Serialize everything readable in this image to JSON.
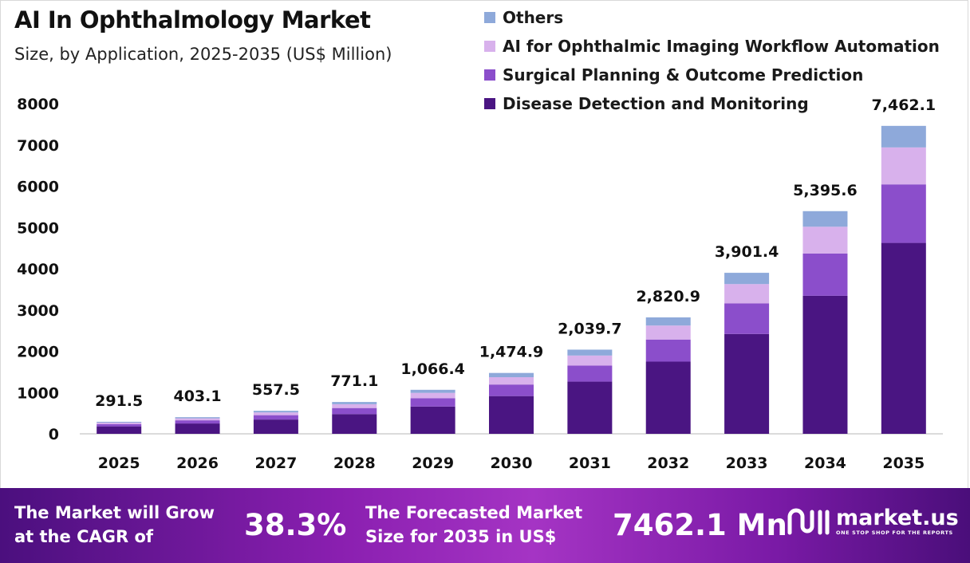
{
  "title": "AI In Ophthalmology Market",
  "subtitle": "Size, by Application, 2025-2035 (US$ Million)",
  "colors": {
    "disease_detection": "#4a1582",
    "surgical_planning": "#8b4ecb",
    "imaging_workflow": "#d8b1ec",
    "others": "#8ea9da",
    "axis_line": "#cfcfcf"
  },
  "chart_data": {
    "type": "bar",
    "stacked": true,
    "title": "AI In Ophthalmology Market",
    "subtitle": "Size, by Application, 2025-2035 (US$ Million)",
    "xlabel": "",
    "ylabel": "",
    "ylim": [
      0,
      8000
    ],
    "yticks": [
      0,
      1000,
      2000,
      3000,
      4000,
      5000,
      6000,
      7000,
      8000
    ],
    "grid": false,
    "legend_position": "top-right",
    "categories": [
      "2025",
      "2026",
      "2027",
      "2028",
      "2029",
      "2030",
      "2031",
      "2032",
      "2033",
      "2034",
      "2035"
    ],
    "totals": [
      291.5,
      403.1,
      557.5,
      771.1,
      1066.4,
      1474.9,
      2039.7,
      2820.9,
      3901.4,
      5395.6,
      7462.1
    ],
    "total_labels": [
      "291.5",
      "403.1",
      "557.5",
      "771.1",
      "1,066.4",
      "1,474.9",
      "2,039.7",
      "2,820.9",
      "3,901.4",
      "5,395.6",
      "7,462.1"
    ],
    "series": [
      {
        "name": "Disease Detection and Monitoring",
        "color_key": "disease_detection",
        "values": [
          180.7,
          249.9,
          345.7,
          478.1,
          661.2,
          914.4,
          1264.6,
          1748.9,
          2418.9,
          3345.3,
          4626.5
        ]
      },
      {
        "name": "Surgical Planning & Outcome Prediction",
        "color_key": "surgical_planning",
        "values": [
          55.4,
          76.6,
          105.9,
          146.5,
          202.6,
          280.2,
          387.5,
          536.0,
          741.3,
          1025.2,
          1417.8
        ]
      },
      {
        "name": "AI for Ophthalmic Imaging Workflow Automation",
        "color_key": "imaging_workflow",
        "values": [
          35.0,
          48.4,
          66.9,
          92.5,
          128.0,
          177.0,
          244.8,
          338.5,
          468.2,
          647.5,
          895.5
        ]
      },
      {
        "name": "Others",
        "color_key": "others",
        "values": [
          20.4,
          28.2,
          39.0,
          54.0,
          74.6,
          103.3,
          142.8,
          197.5,
          273.1,
          377.7,
          522.3
        ]
      }
    ]
  },
  "legend": [
    {
      "label": "Others",
      "color_key": "others"
    },
    {
      "label": "AI for Ophthalmic Imaging Workflow Automation",
      "color_key": "imaging_workflow"
    },
    {
      "label": "Surgical Planning & Outcome Prediction",
      "color_key": "surgical_planning"
    },
    {
      "label": "Disease Detection and Monitoring",
      "color_key": "disease_detection"
    }
  ],
  "footer": {
    "cagr_text_line1": "The Market will Grow",
    "cagr_text_line2": "at the CAGR of",
    "cagr_value": "38.3%",
    "forecast_text_line1": "The Forecasted Market",
    "forecast_text_line2": "Size for 2035 in US$",
    "forecast_value": "7462.1 Mn",
    "brand_name": "market.us",
    "brand_tagline": "ONE STOP SHOP FOR THE REPORTS"
  }
}
